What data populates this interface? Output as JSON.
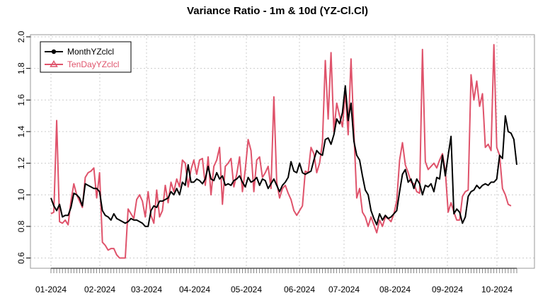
{
  "chart_data": {
    "type": "line",
    "title": "Variance Ratio - 1m & 10d (YZ-Cl.Cl)",
    "xlabel": "",
    "ylabel": "",
    "ylim": [
      0.6,
      2.0
    ],
    "yticks": [
      "0.6",
      "0.8",
      "1.0",
      "1.2",
      "1.4",
      "1.6",
      "1.8",
      "2.0"
    ],
    "x_tick_labels": [
      "01-2024",
      "02-2024",
      "03-2024",
      "04-2024",
      "05-2024",
      "06-2024",
      "07-2024",
      "08-2024",
      "09-2024",
      "10-2024"
    ],
    "grid": true,
    "legend_position": "top-left",
    "series": [
      {
        "name": "MonthYZclcl",
        "color": "#000000",
        "marker": "circle",
        "values": [
          0.98,
          0.93,
          0.9,
          0.94,
          0.86,
          0.87,
          0.87,
          0.92,
          1.01,
          1.0,
          0.98,
          0.93,
          1.07,
          1.06,
          1.05,
          1.04,
          1.04,
          1.02,
          0.9,
          0.87,
          0.86,
          0.84,
          0.88,
          0.85,
          0.84,
          0.83,
          0.82,
          0.83,
          0.85,
          0.84,
          0.84,
          0.83,
          0.82,
          0.8,
          0.8,
          0.9,
          0.93,
          0.92,
          0.96,
          0.96,
          0.97,
          0.98,
          1.02,
          1.0,
          1.04,
          1.0,
          1.08,
          1.06,
          1.19,
          1.08,
          1.08,
          1.1,
          1.09,
          1.07,
          1.1,
          1.18,
          1.1,
          1.09,
          1.14,
          1.1,
          1.12,
          1.06,
          1.07,
          1.06,
          1.09,
          1.1,
          1.12,
          1.08,
          1.05,
          1.11,
          1.08,
          1.09,
          1.11,
          1.06,
          1.1,
          1.09,
          1.04,
          1.07,
          1.1,
          1.06,
          1.02,
          1.06,
          1.08,
          1.11,
          1.21,
          1.15,
          1.14,
          1.2,
          1.14,
          1.13,
          1.14,
          1.15,
          1.22,
          1.28,
          1.26,
          1.25,
          1.35,
          1.36,
          1.32,
          1.38,
          1.48,
          1.45,
          1.52,
          1.69,
          1.47,
          1.58,
          1.34,
          1.25,
          1.22,
          1.12,
          1.03,
          1.0,
          0.9,
          0.85,
          0.81,
          0.88,
          0.84,
          0.87,
          0.85,
          0.86,
          0.88,
          0.9,
          1.02,
          1.13,
          1.16,
          1.08,
          1.1,
          1.04,
          1.1,
          1.07,
          1.0,
          1.06,
          1.05,
          1.07,
          1.02,
          1.11,
          1.1,
          1.25,
          1.12,
          1.25,
          1.37,
          0.88,
          0.91,
          0.89,
          0.82,
          0.86,
          0.99,
          1.02,
          1.03,
          1.06,
          1.04,
          1.06,
          1.07,
          1.06,
          1.08,
          1.08,
          1.1,
          1.25,
          1.23,
          1.5,
          1.4,
          1.39,
          1.35,
          1.19
        ]
      },
      {
        "name": "TenDayYZclcl",
        "color": "#DF536B",
        "marker": "triangle",
        "values": [
          0.88,
          0.89,
          1.47,
          0.83,
          0.82,
          0.84,
          0.81,
          0.96,
          1.07,
          1.0,
          0.96,
          0.92,
          1.11,
          1.14,
          1.15,
          1.17,
          0.98,
          1.14,
          0.7,
          0.68,
          0.65,
          0.66,
          0.66,
          0.62,
          0.6,
          0.6,
          0.6,
          0.91,
          0.88,
          0.85,
          0.97,
          1.0,
          0.96,
          0.86,
          1.02,
          0.87,
          0.82,
          1.03,
          0.86,
          0.9,
          1.06,
          0.95,
          1.08,
          1.02,
          1.1,
          1.05,
          1.22,
          1.2,
          1.05,
          1.16,
          1.22,
          1.13,
          1.22,
          1.23,
          1.06,
          1.24,
          1.0,
          1.18,
          1.22,
          1.3,
          0.94,
          1.18,
          1.2,
          1.23,
          1.05,
          1.13,
          1.24,
          1.02,
          1.16,
          1.35,
          1.28,
          1.02,
          1.22,
          1.24,
          1.11,
          1.14,
          1.18,
          1.04,
          1.62,
          1.08,
          0.98,
          1.04,
          1.06,
          1.01,
          0.97,
          0.9,
          0.87,
          0.9,
          0.93,
          1.15,
          1.14,
          1.3,
          1.26,
          1.14,
          1.2,
          1.33,
          1.85,
          1.48,
          1.9,
          1.4,
          1.58,
          1.5,
          1.43,
          1.65,
          1.38,
          1.86,
          1.4,
          0.98,
          1.04,
          0.89,
          0.86,
          0.8,
          0.86,
          0.81,
          0.76,
          0.84,
          0.8,
          0.86,
          0.85,
          0.83,
          0.88,
          0.96,
          1.22,
          1.33,
          1.19,
          1.14,
          1.08,
          1.07,
          1.02,
          1.01,
          1.92,
          1.21,
          1.16,
          1.18,
          1.2,
          1.17,
          1.22,
          1.26,
          1.15,
          0.89,
          0.95,
          0.89,
          0.84,
          0.84,
          0.99,
          1.02,
          1.03,
          1.76,
          1.6,
          1.72,
          1.56,
          1.64,
          1.3,
          1.32,
          1.28,
          1.95,
          1.3,
          1.25,
          1.04,
          1.0,
          0.94,
          0.93
        ]
      }
    ]
  }
}
